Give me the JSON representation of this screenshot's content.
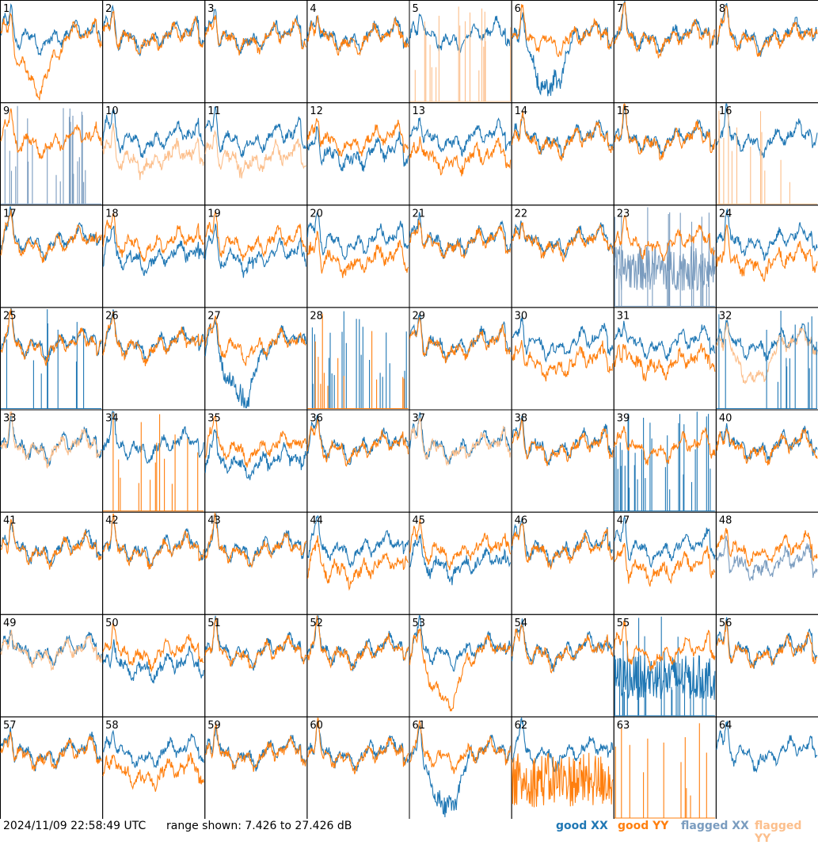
{
  "footer": {
    "timestamp": "2024/11/09 22:58:49 UTC",
    "range": "range shown: 7.426 to 27.426 dB"
  },
  "legend": {
    "good_xx": "good XX",
    "good_yy": "good YY",
    "flagged_xx": "flagged XX",
    "flagged_yy": "flagged YY"
  },
  "colors": {
    "good_xx": "#1f77b4",
    "good_yy": "#ff7f0e",
    "flagged_xx": "#7a9cbf",
    "flagged_yy": "#fcbf8c"
  },
  "chart_data": {
    "type": "line",
    "ylim": [
      7.426,
      27.426
    ],
    "unit": "dB",
    "panels": [
      {
        "label": "1",
        "xx": "good",
        "yy": "good",
        "shape": "yy_dip"
      },
      {
        "label": "2",
        "xx": "good",
        "yy": "good",
        "shape": "normal"
      },
      {
        "label": "3",
        "xx": "good",
        "yy": "good",
        "shape": "normal"
      },
      {
        "label": "4",
        "xx": "good",
        "yy": "good",
        "shape": "normal"
      },
      {
        "label": "5",
        "xx": "good",
        "yy": "flagged",
        "shape": "yy_spikes"
      },
      {
        "label": "6",
        "xx": "good",
        "yy": "good",
        "shape": "xx_dip"
      },
      {
        "label": "7",
        "xx": "good",
        "yy": "good",
        "shape": "normal"
      },
      {
        "label": "8",
        "xx": "good",
        "yy": "good",
        "shape": "normal"
      },
      {
        "label": "9",
        "xx": "flagged",
        "yy": "good",
        "shape": "xx_spikes"
      },
      {
        "label": "10",
        "xx": "good",
        "yy": "flagged",
        "shape": "yy_low"
      },
      {
        "label": "11",
        "xx": "good",
        "yy": "flagged",
        "shape": "yy_low"
      },
      {
        "label": "12",
        "xx": "good",
        "yy": "good",
        "shape": "xx_low"
      },
      {
        "label": "13",
        "xx": "good",
        "yy": "good",
        "shape": "yy_low"
      },
      {
        "label": "14",
        "xx": "good",
        "yy": "good",
        "shape": "normal"
      },
      {
        "label": "15",
        "xx": "good",
        "yy": "good",
        "shape": "normal"
      },
      {
        "label": "16",
        "xx": "good",
        "yy": "flagged",
        "shape": "yy_spikes"
      },
      {
        "label": "17",
        "xx": "good",
        "yy": "good",
        "shape": "normal"
      },
      {
        "label": "18",
        "xx": "good",
        "yy": "good",
        "shape": "xx_low"
      },
      {
        "label": "19",
        "xx": "good",
        "yy": "good",
        "shape": "xx_low"
      },
      {
        "label": "20",
        "xx": "good",
        "yy": "good",
        "shape": "yy_low"
      },
      {
        "label": "21",
        "xx": "good",
        "yy": "good",
        "shape": "normal"
      },
      {
        "label": "22",
        "xx": "good",
        "yy": "good",
        "shape": "normal"
      },
      {
        "label": "23",
        "xx": "flagged",
        "yy": "good",
        "shape": "xx_noisy"
      },
      {
        "label": "24",
        "xx": "good",
        "yy": "good",
        "shape": "yy_low"
      },
      {
        "label": "25",
        "xx": "good",
        "yy": "good",
        "shape": "xx_spikes"
      },
      {
        "label": "26",
        "xx": "good",
        "yy": "good",
        "shape": "normal"
      },
      {
        "label": "27",
        "xx": "good",
        "yy": "good",
        "shape": "xx_dip"
      },
      {
        "label": "28",
        "xx": "good",
        "yy": "good",
        "shape": "both_spikes"
      },
      {
        "label": "29",
        "xx": "good",
        "yy": "good",
        "shape": "normal"
      },
      {
        "label": "30",
        "xx": "good",
        "yy": "good",
        "shape": "yy_low"
      },
      {
        "label": "31",
        "xx": "good",
        "yy": "good",
        "shape": "yy_low"
      },
      {
        "label": "32",
        "xx": "good",
        "yy": "flagged",
        "shape": "yy_dip_spikes"
      },
      {
        "label": "33",
        "xx": "good",
        "yy": "flagged",
        "shape": "normal"
      },
      {
        "label": "34",
        "xx": "good",
        "yy": "good",
        "shape": "yy_spikes"
      },
      {
        "label": "35",
        "xx": "good",
        "yy": "good",
        "shape": "xx_low"
      },
      {
        "label": "36",
        "xx": "good",
        "yy": "good",
        "shape": "normal"
      },
      {
        "label": "37",
        "xx": "good",
        "yy": "flagged",
        "shape": "normal"
      },
      {
        "label": "38",
        "xx": "good",
        "yy": "good",
        "shape": "normal"
      },
      {
        "label": "39",
        "xx": "good",
        "yy": "good",
        "shape": "xx_spikes"
      },
      {
        "label": "40",
        "xx": "good",
        "yy": "good",
        "shape": "normal"
      },
      {
        "label": "41",
        "xx": "good",
        "yy": "good",
        "shape": "normal"
      },
      {
        "label": "42",
        "xx": "good",
        "yy": "good",
        "shape": "normal"
      },
      {
        "label": "43",
        "xx": "good",
        "yy": "good",
        "shape": "normal"
      },
      {
        "label": "44",
        "xx": "good",
        "yy": "good",
        "shape": "yy_low"
      },
      {
        "label": "45",
        "xx": "good",
        "yy": "good",
        "shape": "xx_low"
      },
      {
        "label": "46",
        "xx": "good",
        "yy": "good",
        "shape": "normal"
      },
      {
        "label": "47",
        "xx": "good",
        "yy": "good",
        "shape": "yy_low"
      },
      {
        "label": "48",
        "xx": "flagged",
        "yy": "good",
        "shape": "xx_low"
      },
      {
        "label": "49",
        "xx": "good",
        "yy": "flagged",
        "shape": "normal"
      },
      {
        "label": "50",
        "xx": "good",
        "yy": "good",
        "shape": "xx_low"
      },
      {
        "label": "51",
        "xx": "good",
        "yy": "good",
        "shape": "normal"
      },
      {
        "label": "52",
        "xx": "good",
        "yy": "good",
        "shape": "normal"
      },
      {
        "label": "53",
        "xx": "good",
        "yy": "good",
        "shape": "yy_dip"
      },
      {
        "label": "54",
        "xx": "good",
        "yy": "good",
        "shape": "normal"
      },
      {
        "label": "55",
        "xx": "good",
        "yy": "good",
        "shape": "xx_noisy"
      },
      {
        "label": "56",
        "xx": "good",
        "yy": "good",
        "shape": "normal"
      },
      {
        "label": "57",
        "xx": "good",
        "yy": "good",
        "shape": "normal"
      },
      {
        "label": "58",
        "xx": "good",
        "yy": "good",
        "shape": "yy_low"
      },
      {
        "label": "59",
        "xx": "good",
        "yy": "good",
        "shape": "normal"
      },
      {
        "label": "60",
        "xx": "good",
        "yy": "good",
        "shape": "normal"
      },
      {
        "label": "61",
        "xx": "good",
        "yy": "good",
        "shape": "xx_dip"
      },
      {
        "label": "62",
        "xx": "good",
        "yy": "good",
        "shape": "yy_noisy"
      },
      {
        "label": "63",
        "xx": "good",
        "yy": "good",
        "shape": "yy_spikes_only"
      },
      {
        "label": "64",
        "xx": "good",
        "yy": "good",
        "shape": "xx_only"
      }
    ]
  }
}
